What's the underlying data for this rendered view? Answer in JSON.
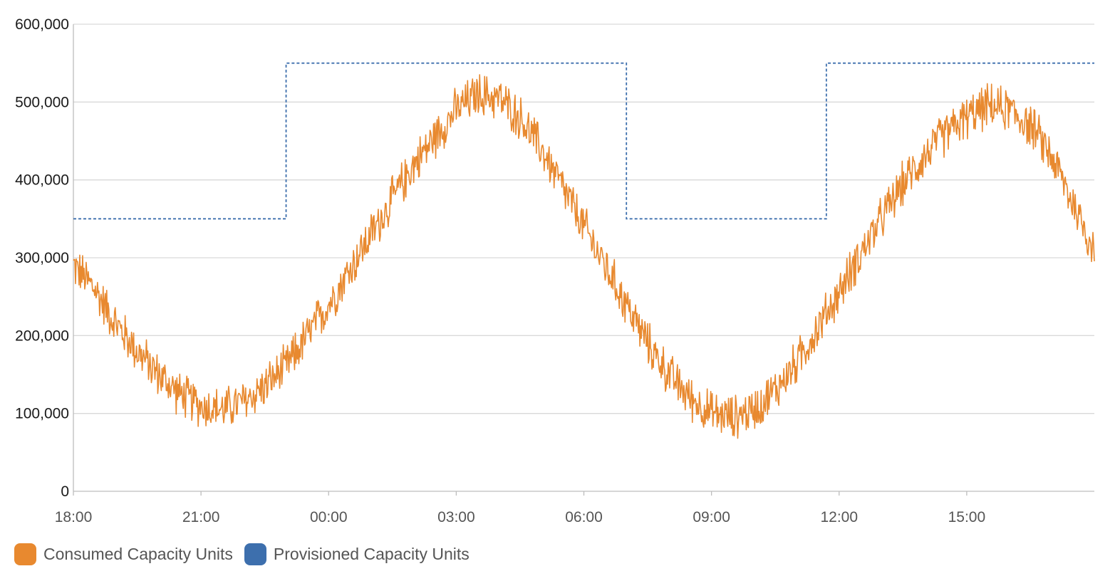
{
  "chart_data": {
    "type": "line",
    "title": "",
    "xlabel": "",
    "ylabel": "",
    "ylim": [
      0,
      600000
    ],
    "y_ticks": [
      {
        "value": 0,
        "label": "0"
      },
      {
        "value": 100000,
        "label": "100,000"
      },
      {
        "value": 200000,
        "label": "200,000"
      },
      {
        "value": 300000,
        "label": "300,000"
      },
      {
        "value": 400000,
        "label": "400,000"
      },
      {
        "value": 500000,
        "label": "500,000"
      },
      {
        "value": 600000,
        "label": "600,000"
      }
    ],
    "x_range_hours": [
      0,
      24
    ],
    "x_ticks": [
      {
        "hour": 0,
        "label": "18:00"
      },
      {
        "hour": 3,
        "label": "21:00"
      },
      {
        "hour": 6,
        "label": "00:00"
      },
      {
        "hour": 9,
        "label": "03:00"
      },
      {
        "hour": 12,
        "label": "06:00"
      },
      {
        "hour": 15,
        "label": "09:00"
      },
      {
        "hour": 18,
        "label": "12:00"
      },
      {
        "hour": 21,
        "label": "15:00"
      }
    ],
    "grid": true,
    "legend_position": "bottom-left",
    "series": [
      {
        "name": "Consumed Capacity Units",
        "color": "#e8892f",
        "style": "solid",
        "x_hours": [
          0,
          0.5,
          1,
          1.5,
          2,
          2.5,
          3,
          3.5,
          4,
          4.5,
          5,
          5.5,
          6,
          6.5,
          7,
          7.5,
          8,
          8.5,
          9,
          9.5,
          10,
          10.5,
          11,
          11.5,
          12,
          12.5,
          13,
          13.5,
          14,
          14.5,
          15,
          15.5,
          16,
          16.5,
          17,
          17.5,
          18,
          18.5,
          19,
          19.5,
          20,
          20.5,
          21,
          21.5,
          22,
          22.5,
          23,
          23.5,
          24
        ],
        "values": [
          290000,
          260000,
          215000,
          180000,
          150000,
          125000,
          110000,
          105000,
          115000,
          135000,
          160000,
          200000,
          240000,
          285000,
          330000,
          375000,
          420000,
          455000,
          490000,
          510000,
          505000,
          480000,
          440000,
          390000,
          340000,
          290000,
          240000,
          190000,
          150000,
          120000,
          100000,
          95000,
          105000,
          130000,
          165000,
          210000,
          255000,
          305000,
          350000,
          395000,
          430000,
          460000,
          480000,
          495000,
          490000,
          470000,
          430000,
          370000,
          310000
        ],
        "noise_amplitude": 30000
      },
      {
        "name": "Provisioned Capacity Units",
        "color": "#3d6fad",
        "style": "dashed-step",
        "x_hours": [
          0,
          5,
          5,
          13,
          13,
          17.7,
          17.7,
          24
        ],
        "values": [
          350000,
          350000,
          550000,
          550000,
          350000,
          350000,
          550000,
          550000
        ]
      }
    ]
  }
}
